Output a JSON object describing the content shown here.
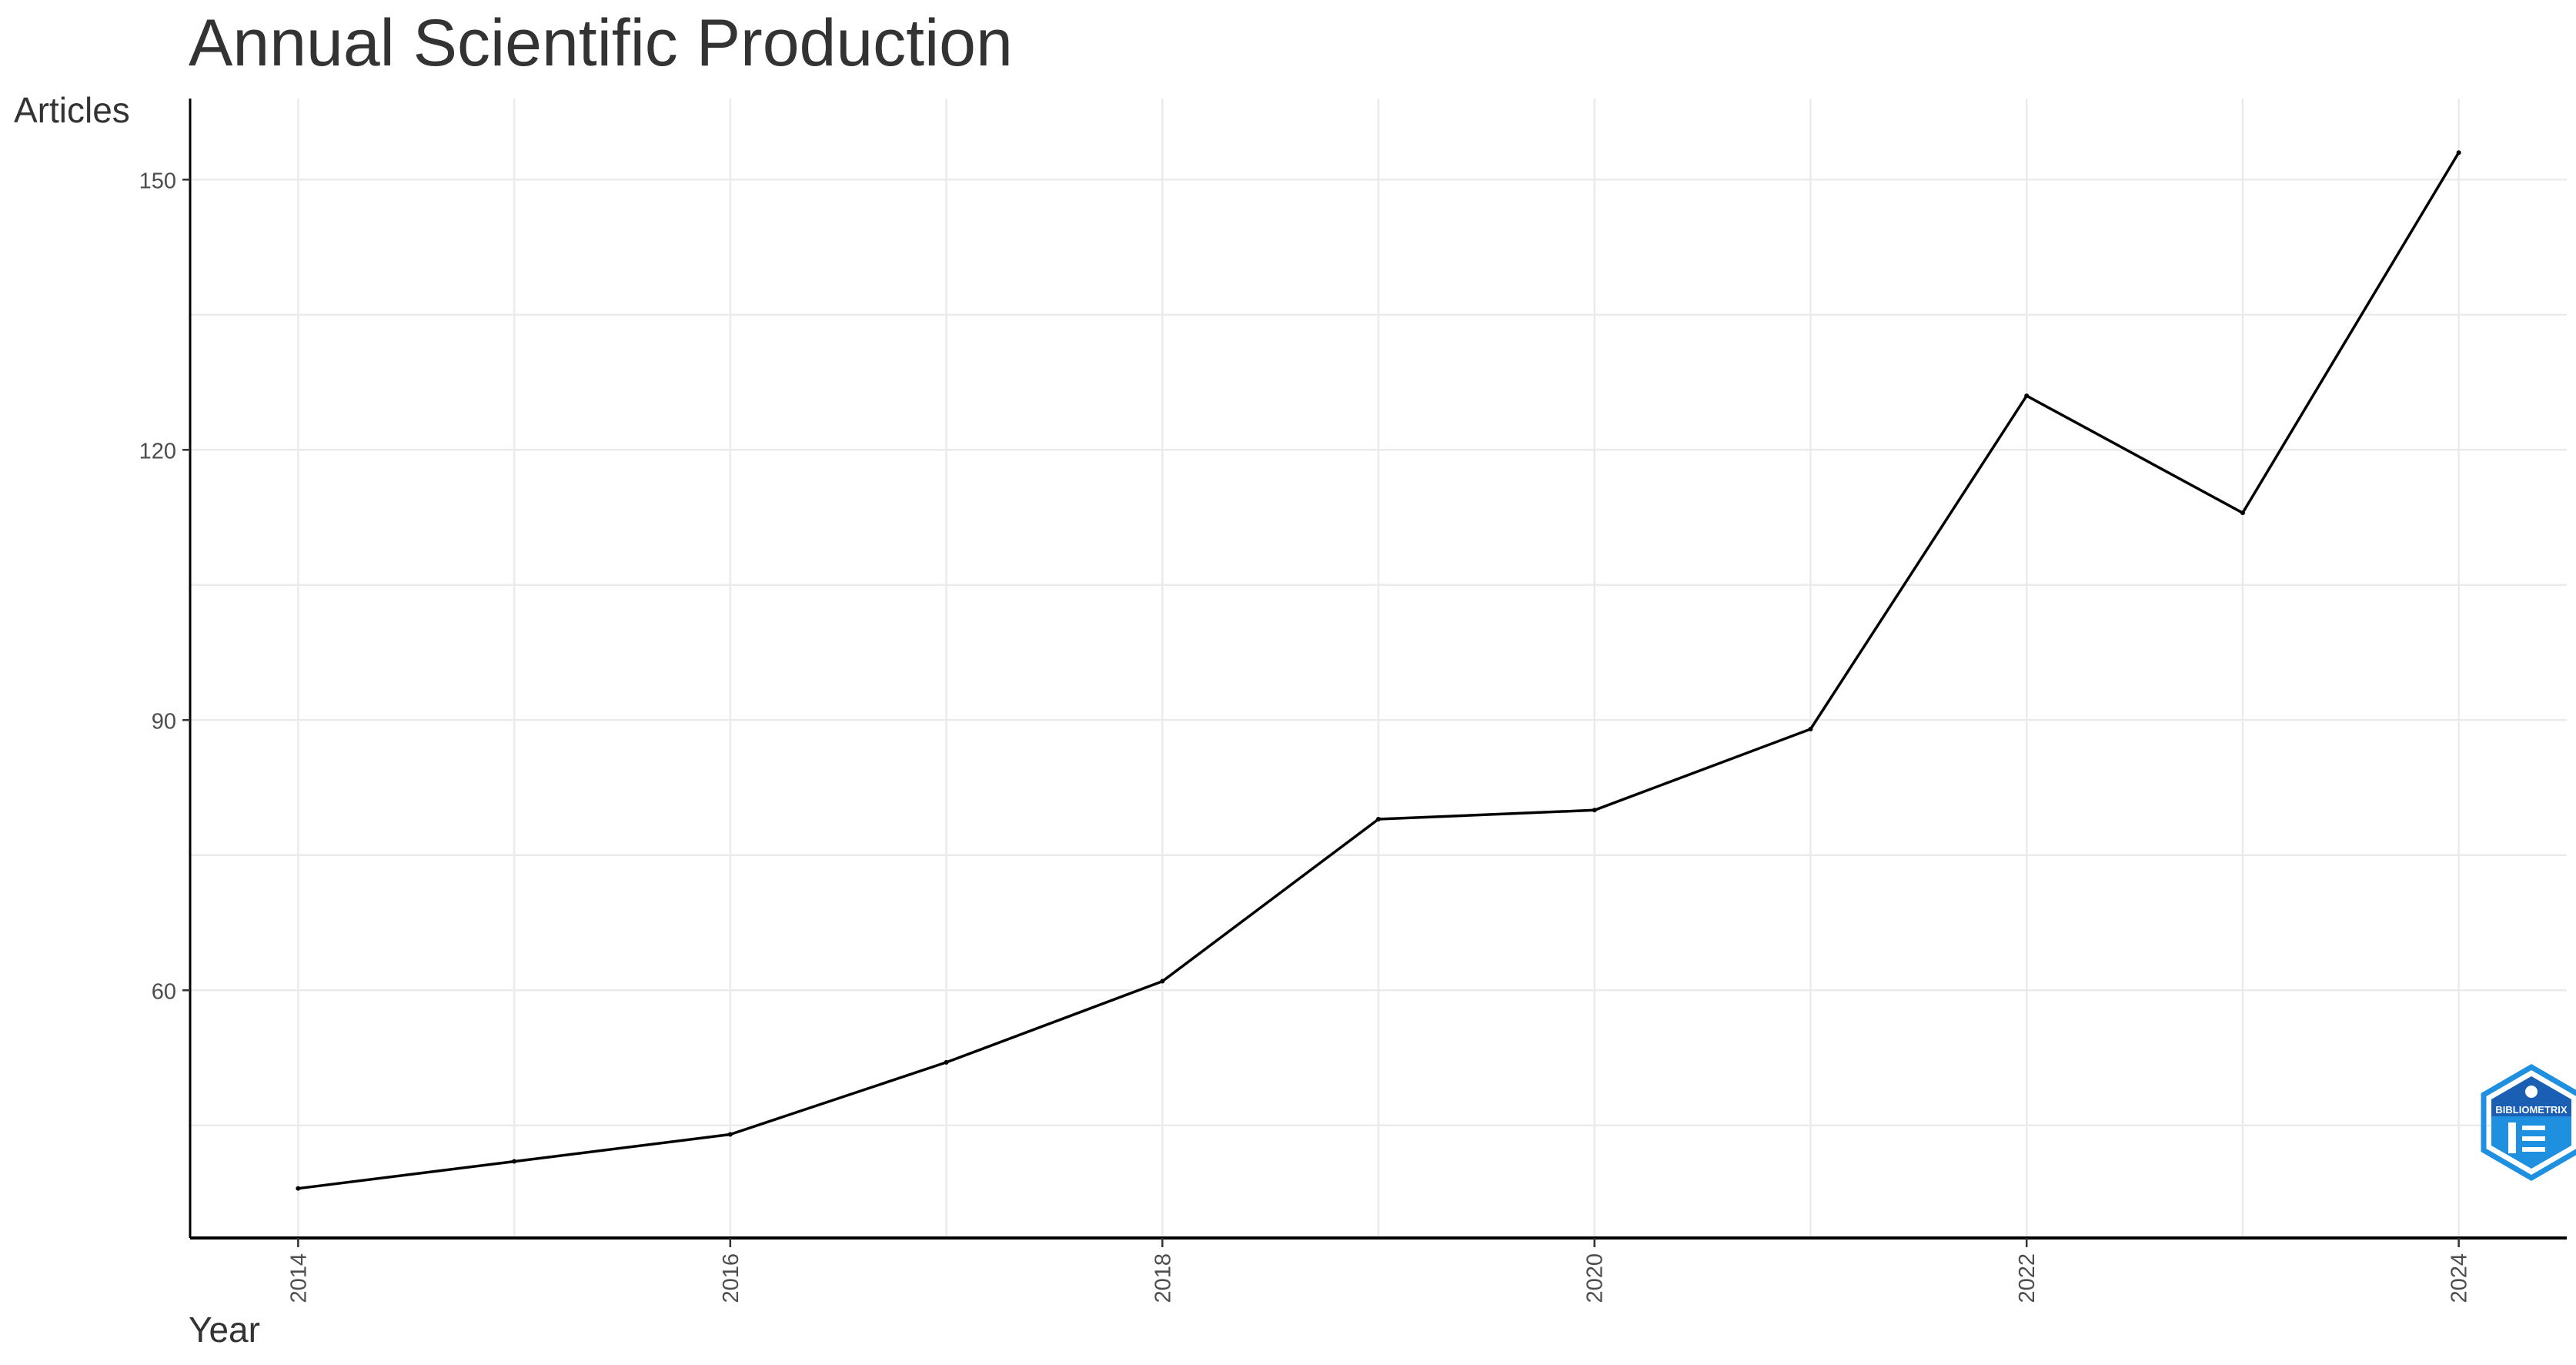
{
  "chart_data": {
    "type": "line",
    "title": "Annual Scientific Production",
    "xlabel": "Year",
    "ylabel": "Articles",
    "x": [
      2014,
      2015,
      2016,
      2017,
      2018,
      2019,
      2020,
      2021,
      2022,
      2023,
      2024
    ],
    "series": [
      {
        "values": [
          38,
          41,
          44,
          52,
          61,
          79,
          80,
          89,
          126,
          113,
          153
        ]
      }
    ],
    "xlim": [
      2013.5,
      2024.5
    ],
    "ylim": [
      32.5,
      159
    ],
    "x_ticks": [
      2014,
      2016,
      2018,
      2020,
      2022,
      2024
    ],
    "y_ticks": [
      60,
      90,
      120,
      150
    ],
    "grid": true,
    "legend": "none",
    "colors": {
      "line": "#000000",
      "grid": "#ebebeb",
      "axis": "#000000",
      "title": "#333333",
      "tick_label": "#4d4d4d",
      "logo_blue": "#1f8fe0",
      "logo_dark": "#1a5fb4"
    },
    "logo": {
      "text": "BIBLIOMETRIX"
    }
  }
}
